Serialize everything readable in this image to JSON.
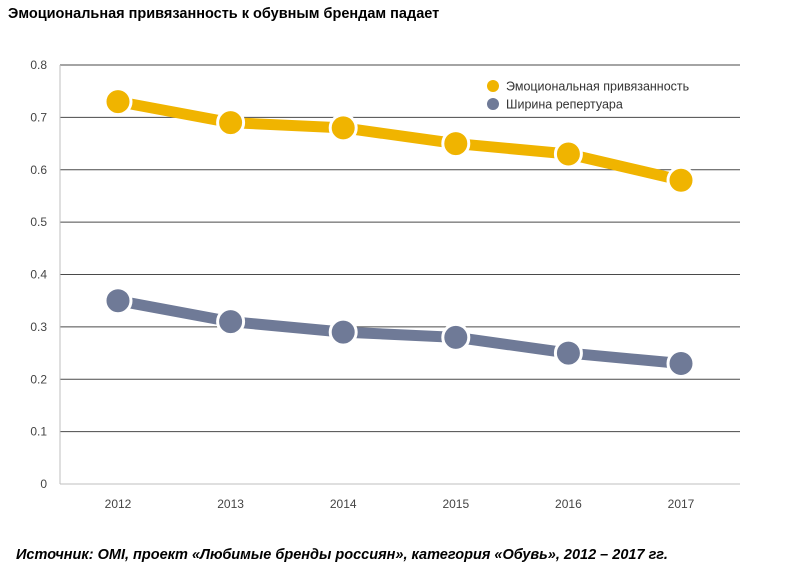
{
  "header": {
    "title": "Эмоциональная привязанность к обувным брендам падает"
  },
  "footer": {
    "source": "Источник: OMI, проект «Любимые бренды россиян», категория «Обувь», 2012 – 2017 гг."
  },
  "chart_data": {
    "type": "line",
    "title": "Эмоциональная привязанность к обувным брендам падает",
    "xlabel": "",
    "ylabel": "",
    "categories": [
      "2012",
      "2013",
      "2014",
      "2015",
      "2016",
      "2017"
    ],
    "ylim": [
      0,
      0.8
    ],
    "yticks": [
      "0",
      "0.1",
      "0.2",
      "0.3",
      "0.4",
      "0.5",
      "0.6",
      "0.7",
      "0.8"
    ],
    "grid": true,
    "legend_position": "top-right",
    "series": [
      {
        "name": "Эмоциональная привязанность",
        "color": "#F0B400",
        "values": [
          0.73,
          0.69,
          0.68,
          0.65,
          0.63,
          0.58
        ]
      },
      {
        "name": "Ширина репертуара",
        "color": "#6F7A97",
        "values": [
          0.35,
          0.31,
          0.29,
          0.28,
          0.25,
          0.23
        ]
      }
    ]
  }
}
